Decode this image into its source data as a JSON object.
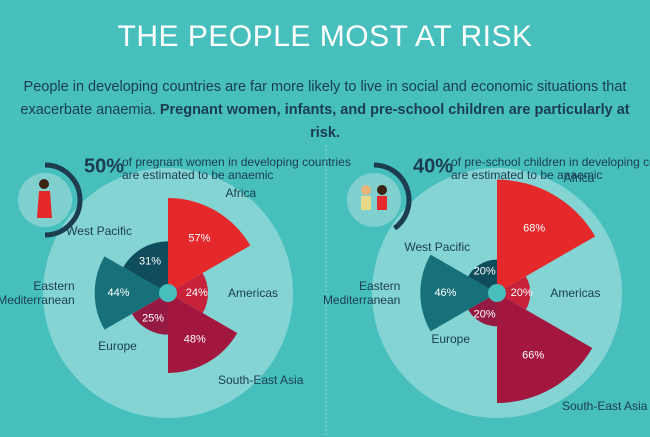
{
  "title": "THE PEOPLE MOST AT RISK",
  "intro": "People in developing countries are far more likely to live in social and economic situations that exacerbate anaemia.",
  "intro_bold": "Pregnant women, infants, and pre-school children are particularly at risk.",
  "chart_data": [
    {
      "type": "polar",
      "share": 50,
      "share_label": "50%",
      "caption": [
        "of pregnant women in developing countries",
        "are estimated to be anaemic"
      ],
      "categories": [
        "Africa",
        "Americas",
        "South-East Asia",
        "Europe",
        "Eastern Mediterranean",
        "West Pacific"
      ],
      "values": [
        57,
        24,
        48,
        25,
        44,
        31
      ],
      "value_labels": [
        "57%",
        "24%",
        "48%",
        "25%",
        "44%",
        "31%"
      ],
      "colors": [
        "#e5282a",
        "#c8213a",
        "#a3173f",
        "#951a41",
        "#16717a",
        "#0f4c5c"
      ],
      "rlim": [
        0,
        75
      ]
    },
    {
      "type": "polar",
      "share": 40,
      "share_label": "40%",
      "caption": [
        "of pre-school children in developing countries",
        "are estimated to be anaemic"
      ],
      "categories": [
        "Africa",
        "Americas",
        "South-East Asia",
        "Europe",
        "Eastern Mediterranean",
        "West Pacific"
      ],
      "values": [
        68,
        20,
        66,
        20,
        46,
        20
      ],
      "value_labels": [
        "68%",
        "20%",
        "66%",
        "20%",
        "46%",
        "20%"
      ],
      "colors": [
        "#e5282a",
        "#c8213a",
        "#a3173f",
        "#951a41",
        "#16717a",
        "#0f4c5c"
      ],
      "rlim": [
        0,
        75
      ]
    }
  ]
}
